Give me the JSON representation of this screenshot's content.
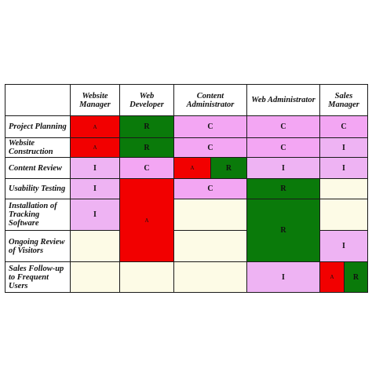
{
  "colors": {
    "A": "#f20000",
    "R": "#0a7a0a",
    "C": "#f3a6f3",
    "I": "#eeb3f3",
    "empty": "#fdfbe6",
    "header": "#ffffff"
  },
  "columns": [
    "Website Manager",
    "Web Developer",
    "Content Administrator",
    "Web Administrator",
    "Sales Manager"
  ],
  "tasks": [
    "Project Planning",
    "Website Construction",
    "Content Review",
    "Usability Testing",
    "Installation of Tracking Software",
    "Ongoing Review of Visitors",
    "Sales Follow-up to Frequent Users"
  ],
  "cells": [
    {
      "row": 0,
      "col": 0,
      "role": "A",
      "label": "A"
    },
    {
      "row": 0,
      "col": 1,
      "role": "R",
      "label": "R"
    },
    {
      "row": 0,
      "col": 2,
      "role": "C",
      "label": "C"
    },
    {
      "row": 0,
      "col": 3,
      "role": "C",
      "label": "C"
    },
    {
      "row": 0,
      "col": 4,
      "role": "C",
      "label": "C"
    },
    {
      "row": 1,
      "col": 0,
      "role": "A",
      "label": "A"
    },
    {
      "row": 1,
      "col": 1,
      "role": "R",
      "label": "R"
    },
    {
      "row": 1,
      "col": 2,
      "role": "C",
      "label": "C"
    },
    {
      "row": 1,
      "col": 3,
      "role": "C",
      "label": "C"
    },
    {
      "row": 1,
      "col": 4,
      "role": "I",
      "label": "I"
    },
    {
      "row": 2,
      "col": 0,
      "role": "I",
      "label": "I"
    },
    {
      "row": 2,
      "col": 1,
      "role": "C",
      "label": "C"
    },
    {
      "row": 2,
      "col": 2,
      "role": "A",
      "label": "A",
      "half": 0
    },
    {
      "row": 2,
      "col": 2,
      "role": "R",
      "label": "R",
      "half": 1
    },
    {
      "row": 2,
      "col": 3,
      "role": "I",
      "label": "I"
    },
    {
      "row": 2,
      "col": 4,
      "role": "I",
      "label": "I"
    },
    {
      "row": 3,
      "col": 0,
      "role": "I",
      "label": "I"
    },
    {
      "row": 3,
      "col": 1,
      "role": "A",
      "label": "A",
      "rowspan": 3
    },
    {
      "row": 3,
      "col": 2,
      "role": "C",
      "label": "C"
    },
    {
      "row": 3,
      "col": 3,
      "role": "R",
      "label": "R"
    },
    {
      "row": 3,
      "col": 4,
      "role": "empty",
      "label": ""
    },
    {
      "row": 4,
      "col": 0,
      "role": "I",
      "label": "I"
    },
    {
      "row": 4,
      "col": 2,
      "role": "empty",
      "label": ""
    },
    {
      "row": 4,
      "col": 3,
      "role": "R",
      "label": "R",
      "rowspan": 2
    },
    {
      "row": 4,
      "col": 4,
      "role": "empty",
      "label": ""
    },
    {
      "row": 5,
      "col": 0,
      "role": "empty",
      "label": ""
    },
    {
      "row": 5,
      "col": 2,
      "role": "empty",
      "label": ""
    },
    {
      "row": 5,
      "col": 4,
      "role": "I",
      "label": "I"
    },
    {
      "row": 6,
      "col": 0,
      "role": "empty",
      "label": ""
    },
    {
      "row": 6,
      "col": 1,
      "role": "empty",
      "label": ""
    },
    {
      "row": 6,
      "col": 2,
      "role": "empty",
      "label": ""
    },
    {
      "row": 6,
      "col": 3,
      "role": "I",
      "label": "I"
    },
    {
      "row": 6,
      "col": 4,
      "role": "A",
      "label": "A",
      "half": 0
    },
    {
      "row": 6,
      "col": 4,
      "role": "R",
      "label": "R",
      "half": 1
    }
  ]
}
